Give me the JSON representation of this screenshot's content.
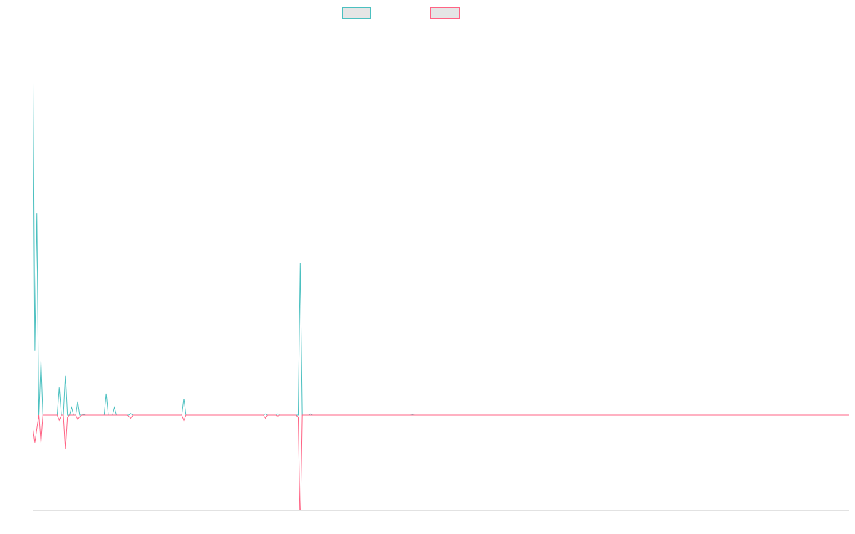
{
  "chart_data": {
    "type": "line",
    "title": "",
    "xlabel": "",
    "ylabel": "",
    "length": 401,
    "ylim": [
      -24.3,
      100
    ],
    "grid": false,
    "legend_position": "top",
    "series": [
      {
        "name": "",
        "color": "#4bc0c0",
        "nonzero": {
          "0": 100,
          "1": 16.5,
          "2": 51.9,
          "4": 13.9,
          "13": 7.1,
          "16": 10.1,
          "19": 2.0,
          "22": 3.5,
          "25": 0.2,
          "36": 5.5,
          "40": 2.0,
          "48": 0.4,
          "74": 4.2,
          "114": 0.3,
          "120": 0.3,
          "131": 39.1,
          "136": 0.3,
          "186": 0.1
        }
      },
      {
        "name": "",
        "color": "#ff6384",
        "nonzero": {
          "0": -3.0,
          "1": -7.1,
          "2": -3.5,
          "4": -7.1,
          "13": -1.3,
          "16": -8.6,
          "17": -0.5,
          "22": -1.1,
          "23": -0.4,
          "47": -0.3,
          "48": -0.8,
          "74": -1.3,
          "114": -0.8,
          "120": -0.2,
          "130": -0.5,
          "131": -30
        }
      }
    ]
  }
}
